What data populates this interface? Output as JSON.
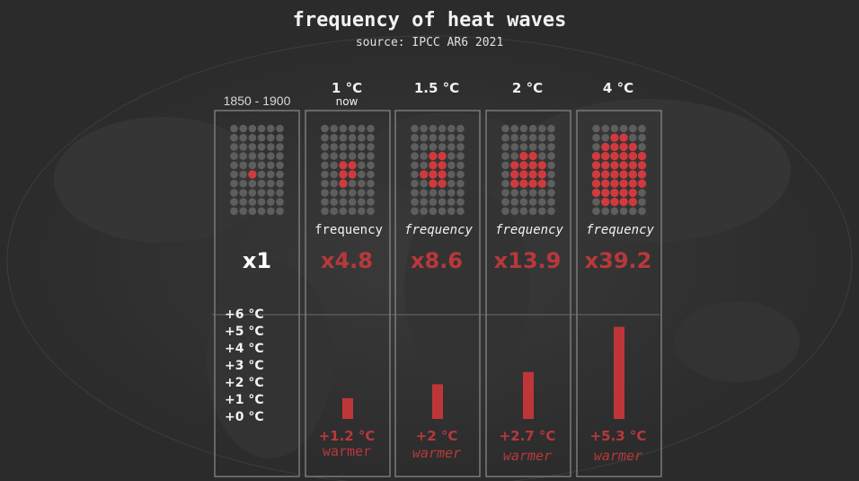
{
  "title": "frequency of heat waves",
  "subtitle": "source: IPCC AR6 2021",
  "colors": {
    "background": "#2b2b2b",
    "highlight": "#d13a3d",
    "dot_inactive": "#5e5e5e",
    "bar": "#bf3639",
    "text_red": "#b8383b"
  },
  "chart_data": {
    "type": "bar",
    "baseline": {
      "header": "1850 - 1900",
      "multiplier": "x1",
      "grid_rows": 10,
      "grid_cols": 6,
      "highlighted_dots": 1
    },
    "scenarios": [
      {
        "header": "1 °C",
        "subheader": "now",
        "frequency_label": "frequency",
        "multiplier": "x4.8",
        "warming_value": 1.2,
        "warming_label": "+1.2 °C",
        "warmer_label": "warmer",
        "highlighted_dots": 5
      },
      {
        "header": "1.5 °C",
        "subheader": "",
        "frequency_label": "frequency",
        "multiplier": "x8.6",
        "warming_value": 2.0,
        "warming_label": "+2 °C",
        "warmer_label": "warmer",
        "highlighted_dots": 9
      },
      {
        "header": "2 °C",
        "subheader": "",
        "frequency_label": "frequency",
        "multiplier": "x13.9",
        "warming_value": 2.7,
        "warming_label": "+2.7 °C",
        "warmer_label": "warmer",
        "highlighted_dots": 14
      },
      {
        "header": "4 °C",
        "subheader": "",
        "frequency_label": "frequency",
        "multiplier": "x39.2",
        "warming_value": 5.3,
        "warming_label": "+5.3 °C",
        "warmer_label": "warmer",
        "highlighted_dots": 39
      }
    ],
    "y_axis": {
      "ticks": [
        "+6 °C",
        "+5 °C",
        "+4 °C",
        "+3 °C",
        "+2 °C",
        "+1 °C",
        "+0 °C"
      ],
      "range": [
        0,
        6
      ]
    },
    "grid": false
  }
}
